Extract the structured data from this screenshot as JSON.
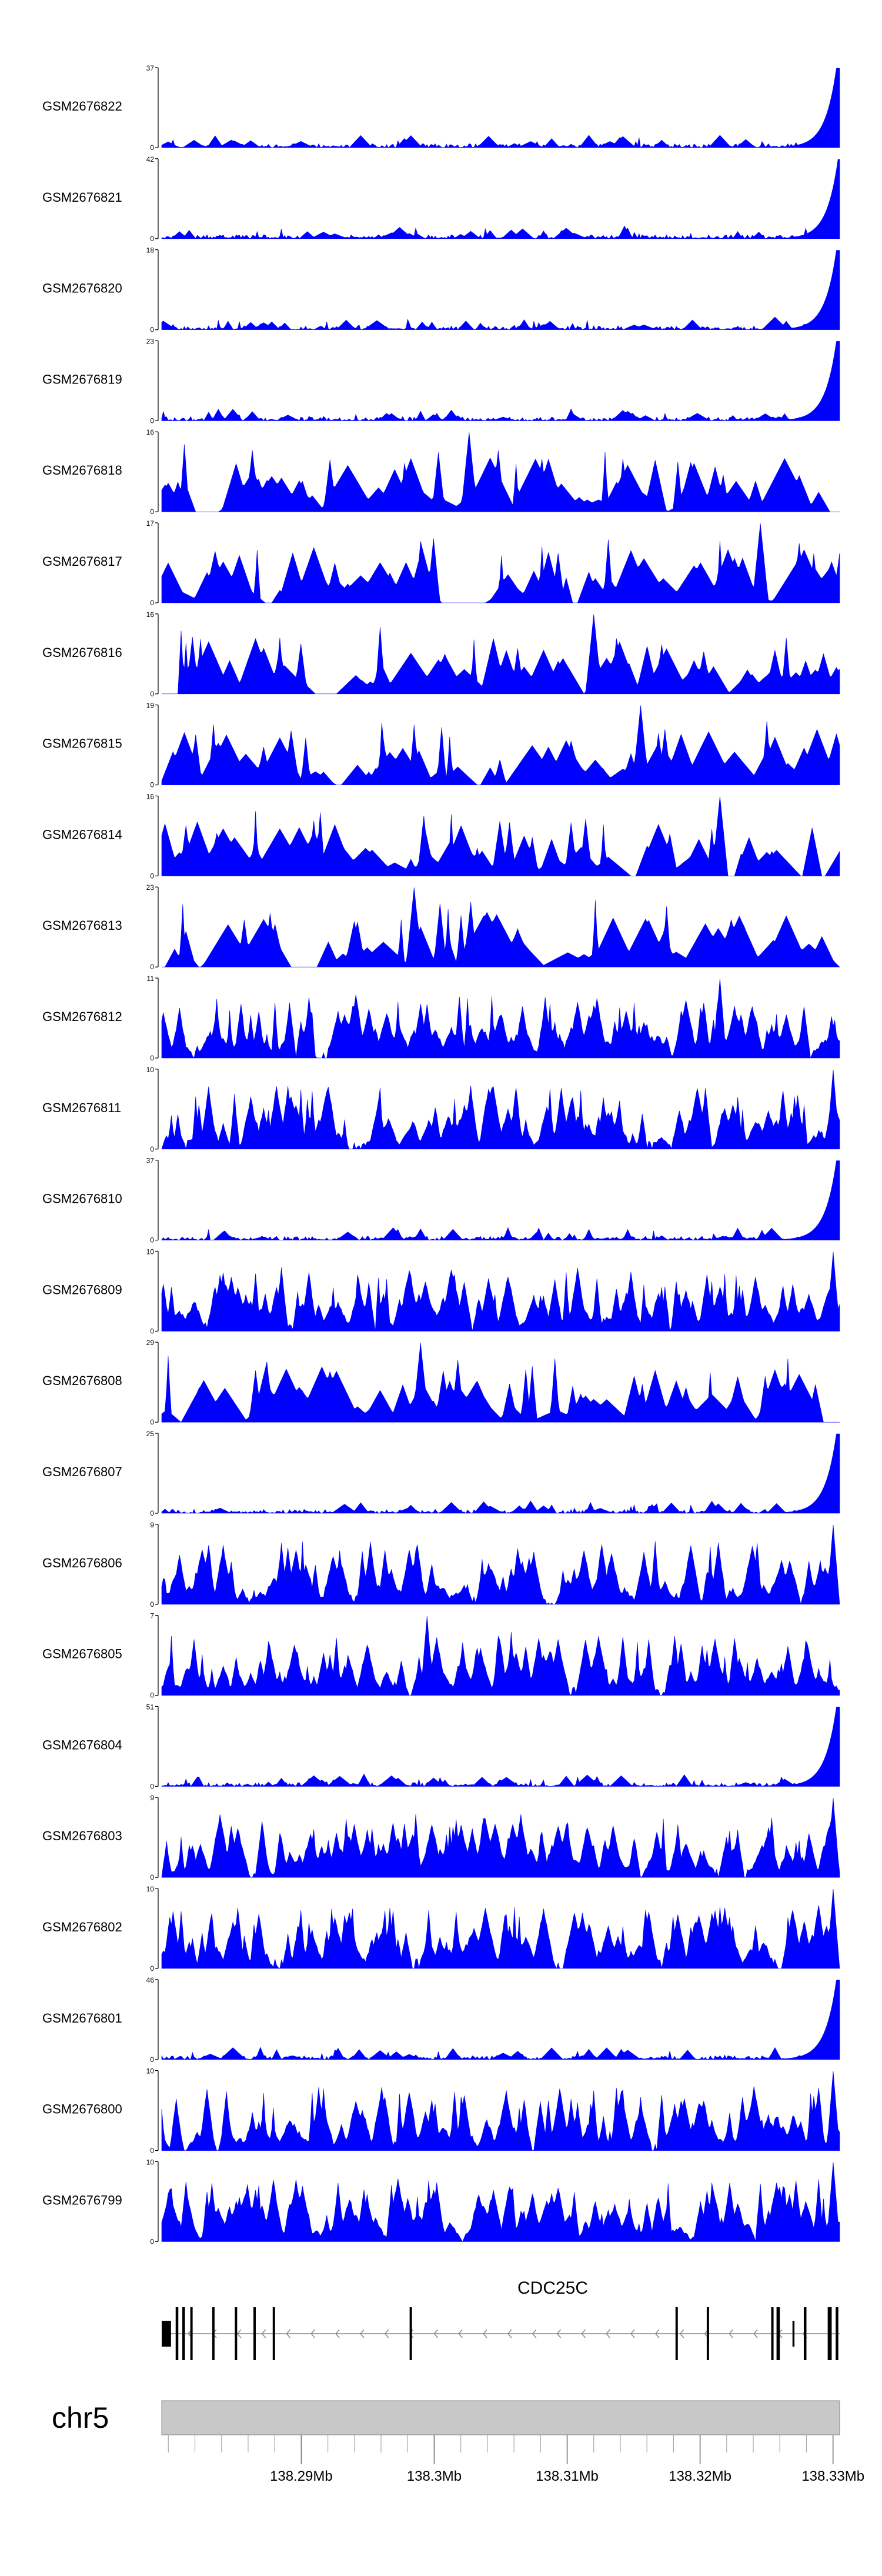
{
  "colors": {
    "signal": "#0000ff",
    "axis": "#000000",
    "gene": "#000000",
    "intron": "#888888",
    "ideogram_fill": "#c8c8c8",
    "ideogram_stroke": "#888888"
  },
  "chart_data": {
    "type": "area",
    "subtype": "genome-browser-coverage-tracks",
    "chromosome": "chr5",
    "x_range_mb": [
      138.2795,
      138.3305
    ],
    "x_ticks": [
      {
        "pos": 138.29,
        "label": "138.29Mb"
      },
      {
        "pos": 138.3,
        "label": "138.3Mb"
      },
      {
        "pos": 138.31,
        "label": "138.31Mb"
      },
      {
        "pos": 138.32,
        "label": "138.32Mb"
      },
      {
        "pos": 138.33,
        "label": "138.33Mb"
      }
    ],
    "tracks": [
      {
        "name": "GSM2676822",
        "ymax": 37,
        "ymin": 0,
        "pattern": "end-peak",
        "seed": 822,
        "peak_pos": 138.3303
      },
      {
        "name": "GSM2676821",
        "ymax": 42,
        "ymin": 0,
        "pattern": "end-peak",
        "seed": 821,
        "peak_pos": 138.3304
      },
      {
        "name": "GSM2676820",
        "ymax": 18,
        "ymin": 0,
        "pattern": "end-peak",
        "seed": 820,
        "peak_pos": 138.3303
      },
      {
        "name": "GSM2676819",
        "ymax": 23,
        "ymin": 0,
        "pattern": "end-peak",
        "seed": 819,
        "peak_pos": 138.3303
      },
      {
        "name": "GSM2676818",
        "ymax": 16,
        "ymin": 0,
        "pattern": "sparse",
        "seed": 818,
        "tallest_pos": 138.3026
      },
      {
        "name": "GSM2676817",
        "ymax": 17,
        "ymin": 0,
        "pattern": "sparse",
        "seed": 817,
        "tallest_pos": 138.3245
      },
      {
        "name": "GSM2676816",
        "ymax": 16,
        "ymin": 0,
        "pattern": "sparse",
        "seed": 816,
        "tallest_pos": 138.312
      },
      {
        "name": "GSM2676815",
        "ymax": 19,
        "ymin": 0,
        "pattern": "sparse",
        "seed": 815,
        "tallest_pos": 138.3155
      },
      {
        "name": "GSM2676814",
        "ymax": 16,
        "ymin": 0,
        "pattern": "sparse",
        "seed": 814,
        "tallest_pos": 138.3215
      },
      {
        "name": "GSM2676813",
        "ymax": 23,
        "ymin": 0,
        "pattern": "sparse",
        "seed": 813,
        "tallest_pos": 138.2985
      },
      {
        "name": "GSM2676812",
        "ymax": 11,
        "ymin": 0,
        "pattern": "dense",
        "seed": 812,
        "tallest_pos": 138.3215
      },
      {
        "name": "GSM2676811",
        "ymax": 10,
        "ymin": 0,
        "pattern": "dense",
        "seed": 811,
        "tallest_pos": 138.33
      },
      {
        "name": "GSM2676810",
        "ymax": 37,
        "ymin": 0,
        "pattern": "end-peak",
        "seed": 810,
        "peak_pos": 138.3303
      },
      {
        "name": "GSM2676809",
        "ymax": 10,
        "ymin": 0,
        "pattern": "dense",
        "seed": 809,
        "tallest_pos": 138.33
      },
      {
        "name": "GSM2676808",
        "ymax": 29,
        "ymin": 0,
        "pattern": "sparse",
        "seed": 808,
        "tallest_pos": 138.299
      },
      {
        "name": "GSM2676807",
        "ymax": 25,
        "ymin": 0,
        "pattern": "end-peak",
        "seed": 807,
        "peak_pos": 138.3303
      },
      {
        "name": "GSM2676806",
        "ymax": 9,
        "ymin": 0,
        "pattern": "dense",
        "seed": 806,
        "tallest_pos": 138.33
      },
      {
        "name": "GSM2676805",
        "ymax": 7,
        "ymin": 0,
        "pattern": "dense",
        "seed": 805,
        "tallest_pos": 138.2995
      },
      {
        "name": "GSM2676804",
        "ymax": 51,
        "ymin": 0,
        "pattern": "end-peak",
        "seed": 804,
        "peak_pos": 138.3303
      },
      {
        "name": "GSM2676803",
        "ymax": 9,
        "ymin": 0,
        "pattern": "dense",
        "seed": 803,
        "tallest_pos": 138.33
      },
      {
        "name": "GSM2676802",
        "ymax": 10,
        "ymin": 0,
        "pattern": "dense",
        "seed": 802,
        "tallest_pos": 138.33
      },
      {
        "name": "GSM2676801",
        "ymax": 46,
        "ymin": 0,
        "pattern": "end-peak",
        "seed": 801,
        "peak_pos": 138.3303
      },
      {
        "name": "GSM2676800",
        "ymax": 10,
        "ymin": 0,
        "pattern": "dense",
        "seed": 800,
        "tallest_pos": 138.33
      },
      {
        "name": "GSM2676799",
        "ymax": 10,
        "ymin": 0,
        "pattern": "dense",
        "seed": 799,
        "tallest_pos": 138.33
      }
    ],
    "gene": {
      "name": "CDC25C",
      "strand": "-",
      "start": 138.2795,
      "end": 138.3305,
      "exons": [
        {
          "start": 138.2795,
          "end": 138.2802,
          "kind": "utr"
        },
        {
          "start": 138.28055,
          "end": 138.28075
        },
        {
          "start": 138.28105,
          "end": 138.28125
        },
        {
          "start": 138.28165,
          "end": 138.2818
        },
        {
          "start": 138.2833,
          "end": 138.28345
        },
        {
          "start": 138.285,
          "end": 138.28515
        },
        {
          "start": 138.2864,
          "end": 138.28655
        },
        {
          "start": 138.28785,
          "end": 138.288
        },
        {
          "start": 138.29815,
          "end": 138.2983
        },
        {
          "start": 138.31815,
          "end": 138.3183
        },
        {
          "start": 138.3205,
          "end": 138.32065
        },
        {
          "start": 138.32535,
          "end": 138.3255
        },
        {
          "start": 138.3278,
          "end": 138.328
        },
        {
          "start": 138.3296,
          "end": 138.3299
        },
        {
          "start": 138.3302,
          "end": 138.3304
        }
      ],
      "thin_exons": [
        {
          "start": 138.32575,
          "end": 138.326
        },
        {
          "start": 138.32695,
          "end": 138.3271,
          "kind": "utr"
        }
      ],
      "intron_arrows_step_mb": 0.00185
    }
  }
}
